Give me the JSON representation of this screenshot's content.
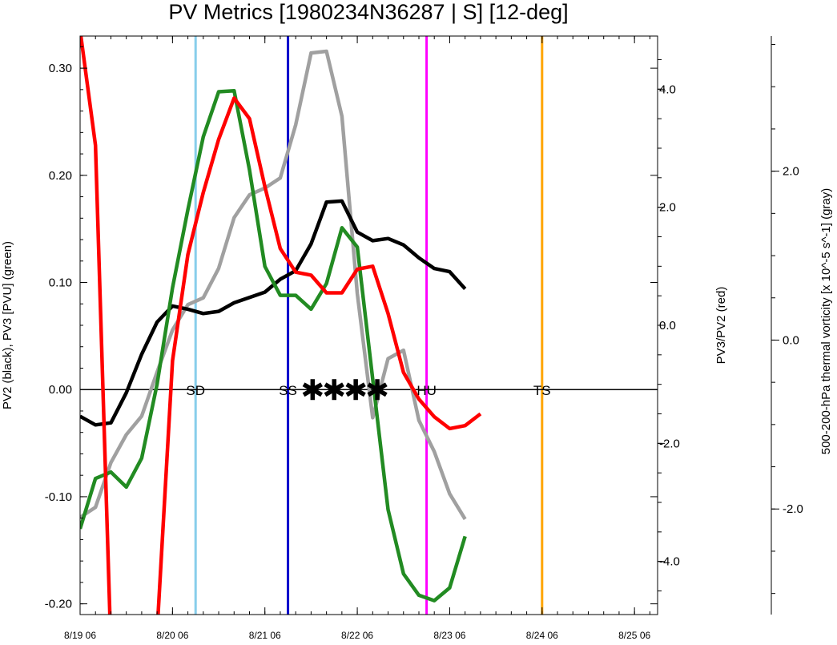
{
  "chart_data": {
    "type": "line",
    "title": "PV Metrics [1980234N36287 | S] [12-deg]",
    "left_axis": {
      "label": "PV2 (black), PV3 [PVU] (green)",
      "ylim": [
        -0.21,
        0.33
      ],
      "ticks": [
        -0.2,
        -0.1,
        0.0,
        0.1,
        0.2,
        0.3
      ],
      "tick_labels": [
        "-0.20",
        "-0.10",
        "0.00",
        "0.10",
        "0.20",
        "0.30"
      ]
    },
    "right_axis": {
      "label": "PV3/PV2 (red)",
      "ylim": [
        -4.9,
        4.9
      ],
      "ticks": [
        -4,
        -2,
        0,
        2,
        4
      ],
      "tick_labels": [
        "-4.0",
        "-2.0",
        "0.0",
        "2.0",
        "4.0"
      ]
    },
    "outer_axis": {
      "label": "500-200-hPa thermal vorticity [x 10^-5 s^-1] (gray)",
      "ylim": [
        -3.25,
        3.6
      ],
      "ticks": [
        -2,
        0,
        2
      ],
      "tick_labels": [
        "-2.0",
        "0.0",
        "2.0"
      ]
    },
    "x_axis": {
      "xlim": [
        0,
        37.5
      ],
      "ticks": [
        0,
        6,
        12,
        18,
        24,
        30,
        36
      ],
      "tick_labels": [
        "8/19 06",
        "8/20 06",
        "8/21 06",
        "8/22 06",
        "8/23 06",
        "8/24 06",
        "8/25 06"
      ]
    },
    "x": [
      0,
      1,
      2,
      3,
      4,
      5,
      6,
      7,
      8,
      9,
      10,
      11,
      12,
      13,
      14,
      15,
      16,
      17,
      18,
      19,
      20,
      21,
      22,
      23,
      24,
      25,
      26,
      27,
      28,
      29,
      30,
      31,
      32,
      33,
      34,
      35,
      36,
      37,
      38
    ],
    "series": [
      {
        "name": "PV2",
        "color": "#000000",
        "axis": "left",
        "values": [
          -0.025,
          -0.033,
          -0.031,
          -0.003,
          0.033,
          0.063,
          0.078,
          0.075,
          0.071,
          0.073,
          0.081,
          0.086,
          0.091,
          0.103,
          0.111,
          0.136,
          0.175,
          0.176,
          0.147,
          0.139,
          0.141,
          0.135,
          0.123,
          0.113,
          0.11,
          0.094,
          null,
          null,
          null,
          null,
          null,
          null,
          null,
          null,
          null,
          null,
          null,
          null,
          null
        ]
      },
      {
        "name": "PV3",
        "color": "#228b22",
        "axis": "left",
        "values": [
          -0.13,
          -0.083,
          -0.077,
          -0.091,
          -0.064,
          0.005,
          0.095,
          0.168,
          0.236,
          0.278,
          0.279,
          0.205,
          0.115,
          0.088,
          0.088,
          0.075,
          0.099,
          0.151,
          0.133,
          0.01,
          -0.112,
          -0.172,
          -0.192,
          -0.197,
          -0.185,
          -0.137,
          null,
          null,
          null,
          null,
          null,
          null,
          null,
          null,
          null,
          null,
          null,
          null,
          null
        ]
      },
      {
        "name": "PV3/PV2",
        "color": "#ff0000",
        "axis": "right",
        "values": [
          5.0,
          3.05,
          -5.5,
          null,
          null,
          -5.2,
          -0.6,
          1.2,
          2.25,
          3.15,
          3.85,
          3.5,
          2.35,
          1.3,
          0.9,
          0.85,
          0.55,
          0.55,
          0.95,
          1.0,
          0.2,
          -0.8,
          -1.25,
          -1.55,
          -1.75,
          -1.7,
          -1.5,
          null,
          null,
          null,
          null,
          null,
          null,
          null,
          null,
          null,
          null,
          null,
          null
        ]
      },
      {
        "name": "thermal vorticity",
        "color": "#a0a0a0",
        "axis": "outer",
        "values": [
          -2.1,
          -1.98,
          -1.45,
          -1.12,
          -0.9,
          -0.38,
          0.12,
          0.42,
          0.5,
          0.85,
          1.45,
          1.72,
          1.8,
          1.92,
          2.55,
          3.4,
          3.42,
          2.65,
          0.55,
          -0.92,
          -0.22,
          -0.12,
          -0.95,
          -1.32,
          -1.82,
          -2.12,
          null,
          null,
          null,
          null,
          null,
          null,
          null,
          null,
          null,
          null,
          null,
          null,
          null
        ]
      }
    ],
    "event_lines": [
      {
        "label": "SD",
        "x": 7.5,
        "color": "#87ceeb"
      },
      {
        "label": "SS",
        "x": 13.5,
        "color": "#0000cc"
      },
      {
        "label": "HU",
        "x": 22.5,
        "color": "#ff00ff"
      },
      {
        "label": "TS",
        "x": 30.0,
        "color": "#ffa500"
      }
    ],
    "star_markers": {
      "x": [
        15.1,
        16.5,
        17.9,
        19.3
      ],
      "y": 0.0,
      "color": "#000000"
    },
    "zero_line": 0.0,
    "grid": false
  }
}
